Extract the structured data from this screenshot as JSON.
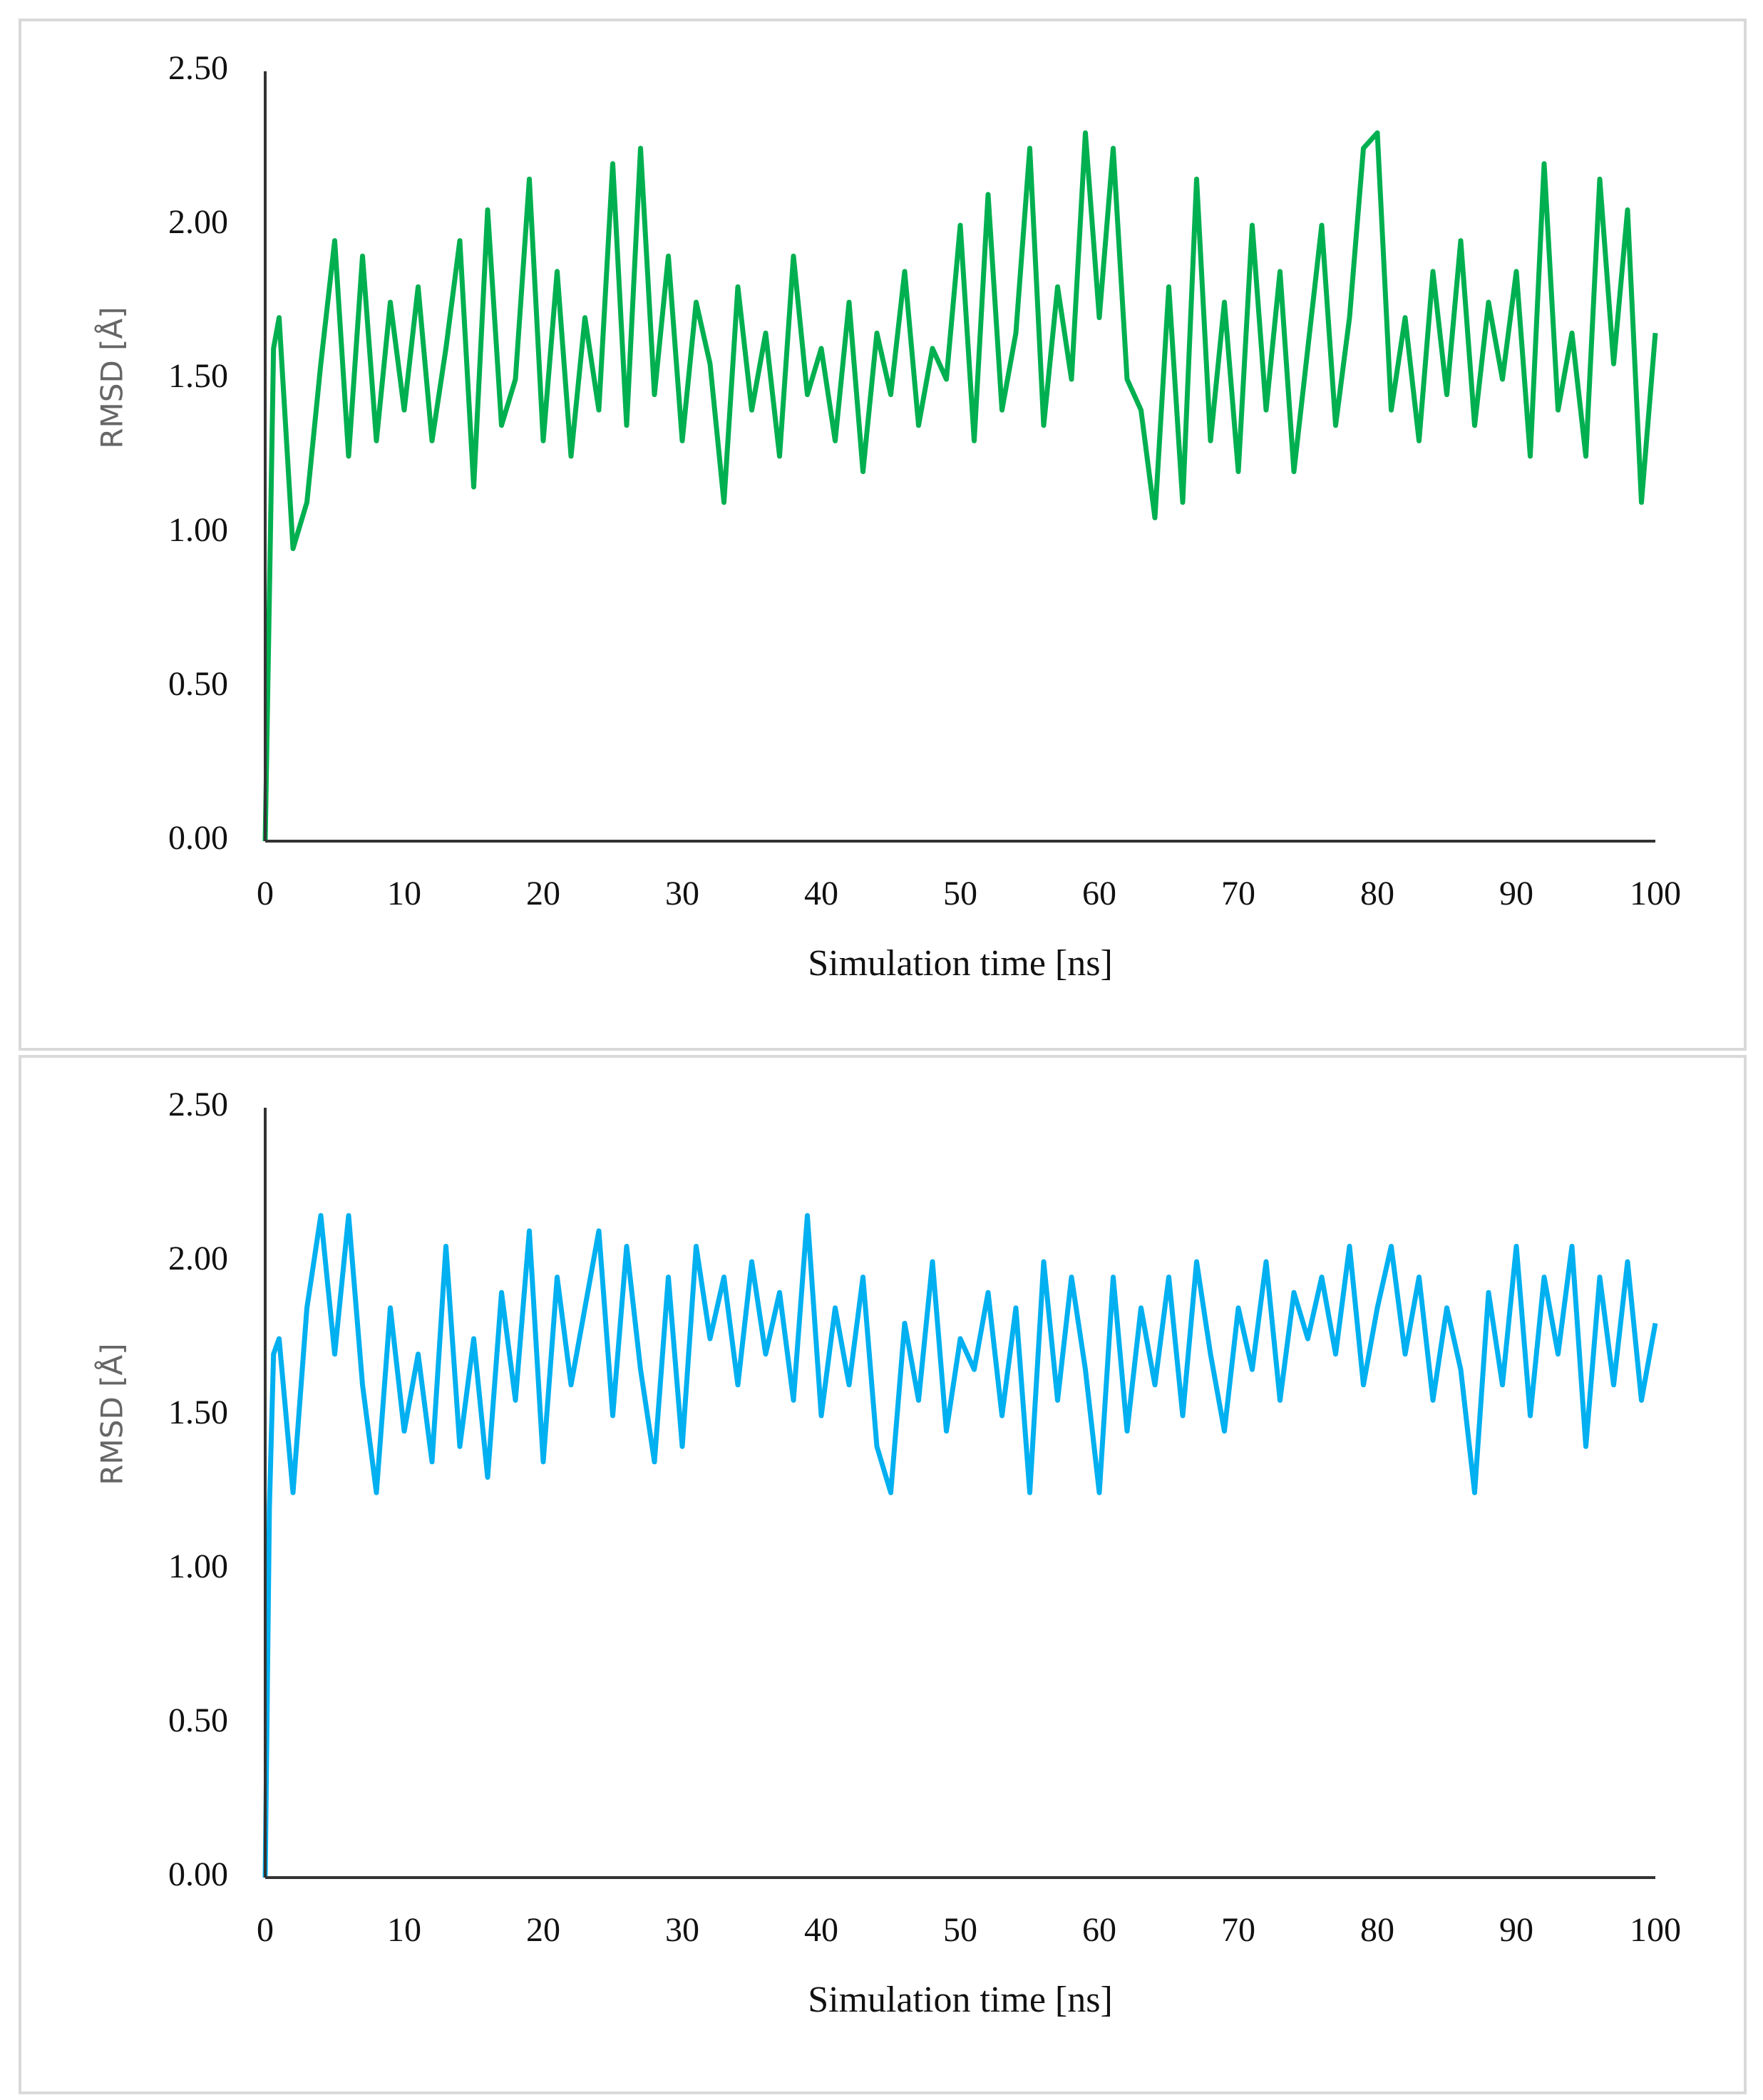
{
  "chart_data": [
    {
      "type": "line",
      "color": "#00b050",
      "x_label": "Simulation time [ns]",
      "y_label": "RMSD [Å]",
      "xlim": [
        0,
        100
      ],
      "xticks": [
        0,
        10,
        20,
        30,
        40,
        50,
        60,
        70,
        80,
        90,
        100
      ],
      "ylim": [
        0,
        2.5
      ],
      "yticks": [
        {
          "value": 0,
          "label": "0.00"
        },
        {
          "value": 0.5,
          "label": "0.50"
        },
        {
          "value": 1,
          "label": "1.00"
        },
        {
          "value": 1.5,
          "label": "1.50"
        },
        {
          "value": 2,
          "label": "2.00"
        },
        {
          "value": 2.5,
          "label": "2.50"
        }
      ],
      "x": [
        0,
        0.3,
        0.6,
        1,
        2,
        3,
        4,
        5,
        6,
        7,
        8,
        9,
        10,
        11,
        12,
        13,
        14,
        15,
        16,
        17,
        18,
        19,
        20,
        21,
        22,
        23,
        24,
        25,
        26,
        27,
        28,
        29,
        30,
        31,
        32,
        33,
        34,
        35,
        36,
        37,
        38,
        39,
        40,
        41,
        42,
        43,
        44,
        45,
        46,
        47,
        48,
        49,
        50,
        51,
        52,
        53,
        54,
        55,
        56,
        57,
        58,
        59,
        60,
        61,
        62,
        63,
        64,
        65,
        66,
        67,
        68,
        69,
        70,
        71,
        72,
        73,
        74,
        75,
        76,
        77,
        78,
        79,
        80,
        81,
        82,
        83,
        84,
        85,
        86,
        87,
        88,
        89,
        90,
        91,
        92,
        93,
        94,
        95,
        96,
        97,
        98,
        99,
        100
      ],
      "values": [
        0,
        0.8,
        1.6,
        1.7,
        0.95,
        1.1,
        1.55,
        1.95,
        1.25,
        1.9,
        1.3,
        1.75,
        1.4,
        1.8,
        1.3,
        1.6,
        1.95,
        1.15,
        2.05,
        1.35,
        1.5,
        2.15,
        1.3,
        1.85,
        1.25,
        1.7,
        1.4,
        2.2,
        1.35,
        2.25,
        1.45,
        1.9,
        1.3,
        1.75,
        1.55,
        1.1,
        1.8,
        1.4,
        1.65,
        1.25,
        1.9,
        1.45,
        1.6,
        1.3,
        1.75,
        1.2,
        1.65,
        1.45,
        1.85,
        1.35,
        1.6,
        1.5,
        2.0,
        1.3,
        2.1,
        1.4,
        1.65,
        2.25,
        1.35,
        1.8,
        1.5,
        2.3,
        1.7,
        2.25,
        1.5,
        1.4,
        1.05,
        1.8,
        1.1,
        2.15,
        1.3,
        1.75,
        1.2,
        2.0,
        1.4,
        1.85,
        1.2,
        1.6,
        2.0,
        1.35,
        1.7,
        2.25,
        2.3,
        1.4,
        1.7,
        1.3,
        1.85,
        1.45,
        1.95,
        1.35,
        1.75,
        1.5,
        1.85,
        1.25,
        2.2,
        1.4,
        1.65,
        1.25,
        2.15,
        1.55,
        2.05,
        1.1,
        1.65
      ]
    },
    {
      "type": "line",
      "color": "#00b0f0",
      "x_label": "Simulation time [ns]",
      "y_label": "RMSD [Å]",
      "xlim": [
        0,
        100
      ],
      "xticks": [
        0,
        10,
        20,
        30,
        40,
        50,
        60,
        70,
        80,
        90,
        100
      ],
      "ylim": [
        0,
        2.5
      ],
      "yticks": [
        {
          "value": 0,
          "label": "0.00"
        },
        {
          "value": 0.5,
          "label": "0.50"
        },
        {
          "value": 1,
          "label": "1.00"
        },
        {
          "value": 1.5,
          "label": "1.50"
        },
        {
          "value": 2,
          "label": "2.00"
        },
        {
          "value": 2.5,
          "label": "2.50"
        }
      ],
      "x": [
        0,
        0.3,
        0.6,
        1,
        2,
        3,
        4,
        5,
        6,
        7,
        8,
        9,
        10,
        11,
        12,
        13,
        14,
        15,
        16,
        17,
        18,
        19,
        20,
        21,
        22,
        23,
        24,
        25,
        26,
        27,
        28,
        29,
        30,
        31,
        32,
        33,
        34,
        35,
        36,
        37,
        38,
        39,
        40,
        41,
        42,
        43,
        44,
        45,
        46,
        47,
        48,
        49,
        50,
        51,
        52,
        53,
        54,
        55,
        56,
        57,
        58,
        59,
        60,
        61,
        62,
        63,
        64,
        65,
        66,
        67,
        68,
        69,
        70,
        71,
        72,
        73,
        74,
        75,
        76,
        77,
        78,
        79,
        80,
        81,
        82,
        83,
        84,
        85,
        86,
        87,
        88,
        89,
        90,
        91,
        92,
        93,
        94,
        95,
        96,
        97,
        98,
        99,
        100
      ],
      "values": [
        0,
        1.2,
        1.7,
        1.75,
        1.25,
        1.85,
        2.15,
        1.7,
        2.15,
        1.6,
        1.25,
        1.85,
        1.45,
        1.7,
        1.35,
        2.05,
        1.4,
        1.75,
        1.3,
        1.9,
        1.55,
        2.1,
        1.35,
        1.95,
        1.6,
        1.85,
        2.1,
        1.5,
        2.05,
        1.65,
        1.35,
        1.95,
        1.4,
        2.05,
        1.75,
        1.95,
        1.6,
        2.0,
        1.7,
        1.9,
        1.55,
        2.15,
        1.5,
        1.85,
        1.6,
        1.95,
        1.4,
        1.25,
        1.8,
        1.55,
        2.0,
        1.45,
        1.75,
        1.65,
        1.9,
        1.5,
        1.85,
        1.25,
        2.0,
        1.55,
        1.95,
        1.65,
        1.25,
        1.95,
        1.45,
        1.85,
        1.6,
        1.95,
        1.5,
        2.0,
        1.7,
        1.45,
        1.85,
        1.65,
        2.0,
        1.55,
        1.9,
        1.75,
        1.95,
        1.7,
        2.05,
        1.6,
        1.85,
        2.05,
        1.7,
        1.95,
        1.55,
        1.85,
        1.65,
        1.25,
        1.9,
        1.6,
        2.05,
        1.5,
        1.95,
        1.7,
        2.05,
        1.4,
        1.95,
        1.6,
        2.0,
        1.55,
        1.8
      ]
    }
  ]
}
